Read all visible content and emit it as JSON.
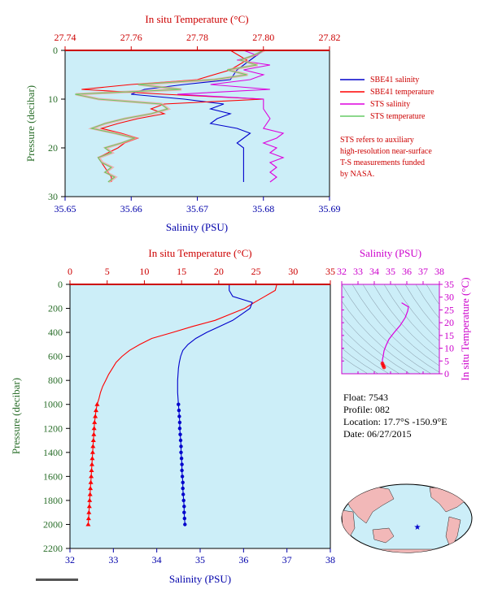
{
  "colors": {
    "panel_bg": "#cceef8",
    "frame": "#000000",
    "temp_axis": "#cc0000",
    "sal_axis": "#0000aa",
    "pressure_axis": "#2a6e2a",
    "sbe_salinity": "#0000cc",
    "sbe_temperature": "#ff0000",
    "sts_salinity": "#dd00dd",
    "sts_temperature": "#66cc66",
    "sts_temperature_light": "#ff9999",
    "ts_axis": "#cc00cc"
  },
  "top_panel": {
    "title_top": "In situ Temperature (°C)",
    "title_bottom": "Salinity (PSU)",
    "ylabel": "Pressure (decibar)",
    "temp_ticks": [
      "27.74",
      "27.76",
      "27.78",
      "27.80",
      "27.82"
    ],
    "sal_ticks": [
      "35.65",
      "35.66",
      "35.67",
      "35.68",
      "35.69"
    ],
    "p_ticks": [
      "0",
      "10",
      "20",
      "30"
    ]
  },
  "legend": {
    "items": [
      "SBE41 salinity",
      "SBE41 temperature",
      "STS salinity",
      "STS temperature"
    ],
    "note": [
      "STS refers to auxiliary",
      "high-resolution near-surface",
      "T-S measurements funded",
      "by NASA."
    ]
  },
  "main_panel": {
    "title_top": "In situ Temperature (°C)",
    "title_bottom": "Salinity (PSU)",
    "ylabel": "Pressure (decibar)",
    "temp_ticks": [
      "0",
      "5",
      "10",
      "15",
      "20",
      "25",
      "30",
      "35"
    ],
    "sal_ticks": [
      "32",
      "33",
      "34",
      "35",
      "36",
      "37",
      "38"
    ],
    "p_ticks": [
      "0",
      "200",
      "400",
      "600",
      "800",
      "1000",
      "1200",
      "1400",
      "1600",
      "1800",
      "2000",
      "2200"
    ]
  },
  "ts_panel": {
    "title": "Salinity (PSU)",
    "ylabel": "In situ Temperature (°C)",
    "sal_ticks": [
      "32",
      "33",
      "34",
      "35",
      "36",
      "37",
      "38"
    ],
    "t_ticks": [
      "0",
      "5",
      "10",
      "15",
      "20",
      "25",
      "30",
      "35"
    ]
  },
  "float_info": {
    "float": "Float:  7543",
    "profile": "Profile:  082",
    "location": "Location:  17.7°S  -150.9°E",
    "date": "Date:  06/27/2015"
  },
  "map": {
    "marker_lon": -150.9,
    "marker_lat": -17.7
  },
  "chart_data": [
    {
      "type": "line",
      "panel": "main_profile",
      "x_temp_lim": [
        0,
        35
      ],
      "x_sal_lim": [
        32,
        38
      ],
      "ylim": [
        2200,
        0
      ],
      "series": [
        {
          "name": "SBE41 temperature",
          "pressure": [
            0,
            50,
            100,
            150,
            200,
            250,
            300,
            350,
            400,
            450,
            500,
            550,
            600,
            650,
            700,
            750,
            800,
            850,
            900,
            950,
            1000,
            1050,
            1100,
            1150,
            1200,
            1250,
            1300,
            1350,
            1400,
            1450,
            1500,
            1550,
            1600,
            1650,
            1700,
            1750,
            1800,
            1850,
            1900,
            1950,
            2000
          ],
          "values": [
            27.8,
            27.6,
            26.2,
            24.8,
            23.5,
            21.5,
            19.5,
            16.5,
            13.8,
            11.0,
            9.4,
            8.0,
            7.0,
            6.2,
            5.7,
            5.2,
            4.8,
            4.4,
            4.1,
            3.9,
            3.65,
            3.5,
            3.4,
            3.3,
            3.25,
            3.2,
            3.15,
            3.1,
            3.05,
            3.0,
            2.95,
            2.9,
            2.85,
            2.8,
            2.75,
            2.7,
            2.65,
            2.6,
            2.55,
            2.5,
            2.45
          ]
        },
        {
          "name": "SBE41 salinity",
          "pressure": [
            0,
            50,
            100,
            150,
            200,
            250,
            300,
            350,
            400,
            450,
            500,
            550,
            600,
            650,
            700,
            800,
            900,
            1000,
            1050,
            1100,
            1150,
            1200,
            1250,
            1300,
            1350,
            1400,
            1450,
            1500,
            1550,
            1600,
            1650,
            1700,
            1750,
            1800,
            1850,
            1900,
            1950,
            2000
          ],
          "values": [
            35.67,
            35.67,
            35.75,
            36.2,
            36.15,
            35.95,
            35.75,
            35.45,
            35.15,
            34.9,
            34.72,
            34.6,
            34.55,
            34.52,
            34.5,
            34.48,
            34.48,
            34.5,
            34.51,
            34.52,
            34.53,
            34.53,
            34.54,
            34.55,
            34.56,
            34.56,
            34.57,
            34.58,
            34.58,
            34.59,
            34.6,
            34.6,
            34.61,
            34.62,
            34.63,
            34.63,
            34.64,
            34.65
          ]
        }
      ]
    },
    {
      "type": "line",
      "panel": "near_surface",
      "x_temp_lim": [
        27.74,
        27.82
      ],
      "x_sal_lim": [
        35.65,
        35.69
      ],
      "ylim": [
        30,
        0
      ],
      "series": [
        {
          "name": "SBE41 salinity",
          "pressure": [
            0,
            2,
            4,
            6,
            7,
            8,
            9,
            10,
            11,
            12,
            13,
            14,
            15,
            16,
            17,
            18,
            19,
            20,
            22,
            24,
            26,
            27
          ],
          "values": [
            35.68,
            35.678,
            35.676,
            35.675,
            35.668,
            35.662,
            35.66,
            35.668,
            35.674,
            35.672,
            35.675,
            35.673,
            35.672,
            35.676,
            35.678,
            35.677,
            35.676,
            35.677,
            35.677,
            35.677,
            35.677,
            35.677
          ]
        },
        {
          "name": "SBE41 temperature",
          "pressure": [
            0,
            2,
            4,
            6,
            7,
            8,
            9,
            10,
            11,
            12,
            13,
            14,
            15,
            16,
            17,
            18,
            19,
            20,
            22,
            24,
            26,
            27
          ],
          "values": [
            27.79,
            27.795,
            27.79,
            27.78,
            27.76,
            27.745,
            27.77,
            27.8,
            27.77,
            27.766,
            27.77,
            27.762,
            27.756,
            27.751,
            27.757,
            27.762,
            27.758,
            27.756,
            27.75,
            27.752,
            27.754,
            27.754
          ]
        },
        {
          "name": "STS salinity",
          "pressure": [
            0,
            1,
            2,
            3,
            4,
            5,
            6,
            7,
            8,
            9,
            10,
            12,
            14,
            16,
            17,
            18,
            19,
            20,
            21,
            22,
            23,
            24,
            25,
            26,
            27
          ],
          "values": [
            35.677,
            35.679,
            35.676,
            35.681,
            35.677,
            35.68,
            35.678,
            35.672,
            35.681,
            35.667,
            35.68,
            35.68,
            35.681,
            35.68,
            35.683,
            35.682,
            35.68,
            35.682,
            35.681,
            35.683,
            35.681,
            35.682,
            35.681,
            35.682,
            35.681
          ]
        },
        {
          "name": "STS temperature",
          "pressure": [
            0,
            1,
            2,
            3,
            4,
            5,
            6,
            7,
            8,
            9,
            10,
            11,
            12,
            13,
            14,
            15,
            16,
            17,
            18,
            19,
            20,
            21,
            22,
            23,
            24,
            25,
            26,
            27
          ],
          "values": [
            27.8,
            27.797,
            27.793,
            27.798,
            27.789,
            27.795,
            27.785,
            27.762,
            27.775,
            27.743,
            27.75,
            27.769,
            27.771,
            27.766,
            27.758,
            27.752,
            27.748,
            27.755,
            27.761,
            27.757,
            27.752,
            27.754,
            27.75,
            27.751,
            27.754,
            27.752,
            27.755,
            27.753
          ]
        }
      ]
    },
    {
      "type": "scatter",
      "panel": "ts_diagram",
      "xlim": [
        32,
        38
      ],
      "ylim": [
        0,
        35
      ],
      "series": [
        {
          "name": "T-S profile",
          "x": [
            35.68,
            35.7,
            36.1,
            36.05,
            35.9,
            35.6,
            35.2,
            34.9,
            34.72,
            34.6,
            34.55,
            34.5,
            34.5,
            34.55,
            34.6
          ],
          "y": [
            27.8,
            27.7,
            26.2,
            24.5,
            22.0,
            19.0,
            16.0,
            13.5,
            11.0,
            9.0,
            7.0,
            5.5,
            4.0,
            3.2,
            2.5
          ]
        }
      ]
    }
  ]
}
